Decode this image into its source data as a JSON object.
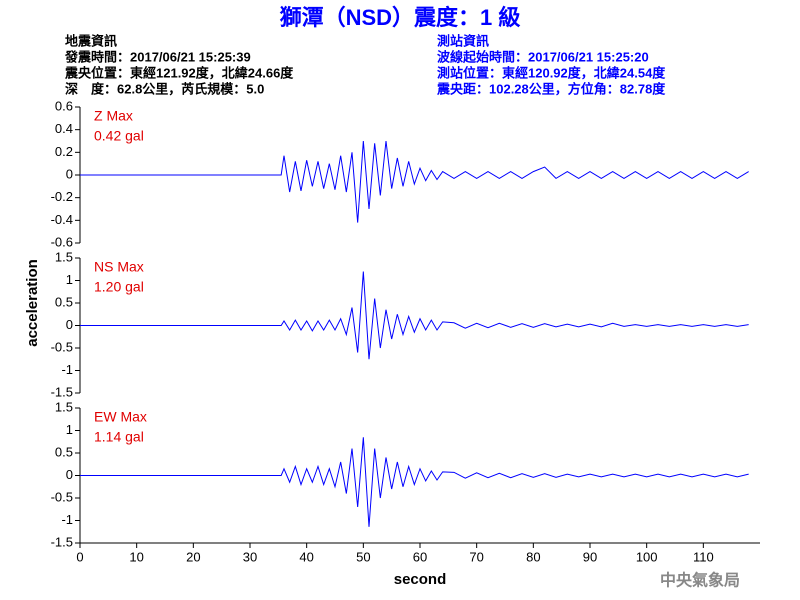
{
  "header": {
    "title": "獅潭（NSD）震度：1 級",
    "left": [
      "地震資訊",
      "發震時間：2017/06/21 15:25:39",
      "震央位置：東經121.92度，北緯24.66度",
      "深　度：62.8公里，芮氏規模：5.0"
    ],
    "right": [
      "測站資訊",
      "波線起始時間：2017/06/21 15:25:20",
      "測站位置：東經120.92度，北緯24.54度",
      "震央距：102.28公里，方位角：82.78度"
    ]
  },
  "ylabel": "acceleration",
  "footer": "中央氣象局",
  "chart_data": [
    {
      "type": "line",
      "title": "Z Max",
      "annotation": "0.42 gal",
      "color": "#0000ff",
      "xlim": [
        0,
        120
      ],
      "ylim": [
        -0.6,
        0.6
      ],
      "yticks": [
        0.6,
        0.4,
        0.2,
        0,
        -0.2,
        -0.4,
        -0.6
      ],
      "x": [
        0,
        35.5,
        36,
        37,
        38,
        39,
        40,
        41,
        42,
        43,
        44,
        45,
        46,
        47,
        48,
        49,
        50,
        51,
        52,
        53,
        54,
        55,
        56,
        57,
        58,
        59,
        60,
        61,
        62,
        63,
        64,
        66,
        68,
        70,
        72,
        74,
        76,
        78,
        80,
        82,
        84,
        86,
        88,
        90,
        92,
        94,
        96,
        98,
        100,
        102,
        104,
        106,
        108,
        110,
        112,
        114,
        116,
        118
      ],
      "values": [
        0,
        0,
        0.17,
        -0.15,
        0.12,
        -0.14,
        0.13,
        -0.1,
        0.12,
        -0.12,
        0.1,
        -0.13,
        0.17,
        -0.15,
        0.2,
        -0.42,
        0.3,
        -0.3,
        0.28,
        -0.18,
        0.3,
        -0.12,
        0.15,
        -0.1,
        0.12,
        -0.08,
        0.06,
        -0.05,
        0.04,
        -0.04,
        0.03,
        -0.03,
        0.03,
        -0.03,
        0.03,
        -0.03,
        0.03,
        -0.03,
        0.03,
        0.07,
        -0.03,
        0.03,
        -0.03,
        0.03,
        -0.03,
        0.03,
        -0.03,
        0.03,
        -0.03,
        0.03,
        -0.03,
        0.03,
        -0.03,
        0.03,
        -0.03,
        0.03,
        -0.03,
        0.03
      ]
    },
    {
      "type": "line",
      "title": "NS Max",
      "annotation": "1.20 gal",
      "color": "#0000ff",
      "xlim": [
        0,
        120
      ],
      "ylim": [
        -1.5,
        1.5
      ],
      "yticks": [
        1.5,
        1,
        0.5,
        0,
        -0.5,
        -1,
        -1.5
      ],
      "x": [
        0,
        35.5,
        36,
        37,
        38,
        39,
        40,
        41,
        42,
        43,
        44,
        45,
        46,
        47,
        48,
        49,
        50,
        51,
        52,
        53,
        54,
        55,
        56,
        57,
        58,
        59,
        60,
        61,
        62,
        63,
        64,
        66,
        68,
        70,
        72,
        74,
        76,
        78,
        80,
        82,
        84,
        86,
        88,
        90,
        92,
        94,
        96,
        98,
        100,
        102,
        104,
        106,
        108,
        110,
        112,
        114,
        116,
        118
      ],
      "values": [
        0,
        0,
        0.1,
        -0.1,
        0.12,
        -0.1,
        0.1,
        -0.12,
        0.1,
        -0.1,
        0.12,
        -0.1,
        0.15,
        -0.2,
        0.4,
        -0.6,
        1.2,
        -0.75,
        0.6,
        -0.5,
        0.35,
        -0.3,
        0.25,
        -0.2,
        0.2,
        -0.15,
        0.15,
        -0.1,
        0.12,
        -0.1,
        0.08,
        0.06,
        -0.06,
        0.05,
        -0.05,
        0.05,
        -0.04,
        0.04,
        -0.04,
        0.04,
        -0.03,
        0.03,
        -0.03,
        0.03,
        -0.03,
        0.05,
        -0.02,
        0.02,
        -0.02,
        0.02,
        -0.02,
        0.02,
        -0.02,
        0.02,
        -0.02,
        0.02,
        -0.02,
        0.02
      ]
    },
    {
      "type": "line",
      "title": "EW Max",
      "annotation": "1.14 gal",
      "color": "#0000ff",
      "xlabel": "second",
      "xlim": [
        0,
        120
      ],
      "xticks": [
        0,
        10,
        20,
        30,
        40,
        50,
        60,
        70,
        80,
        90,
        100,
        110
      ],
      "ylim": [
        -1.5,
        1.5
      ],
      "yticks": [
        1.5,
        1,
        0.5,
        0,
        -0.5,
        -1,
        -1.5
      ],
      "x": [
        0,
        35.5,
        36,
        37,
        38,
        39,
        40,
        41,
        42,
        43,
        44,
        45,
        46,
        47,
        48,
        49,
        50,
        51,
        52,
        53,
        54,
        55,
        56,
        57,
        58,
        59,
        60,
        61,
        62,
        63,
        64,
        66,
        68,
        70,
        72,
        74,
        76,
        78,
        80,
        82,
        84,
        86,
        88,
        90,
        92,
        94,
        96,
        98,
        100,
        102,
        104,
        106,
        108,
        110,
        112,
        114,
        116,
        118
      ],
      "values": [
        0,
        0,
        0.15,
        -0.15,
        0.2,
        -0.2,
        0.15,
        -0.15,
        0.2,
        -0.2,
        0.15,
        -0.25,
        0.3,
        -0.4,
        0.6,
        -0.7,
        0.85,
        -1.14,
        0.6,
        -0.5,
        0.4,
        -0.3,
        0.3,
        -0.25,
        0.2,
        -0.2,
        0.15,
        -0.12,
        0.1,
        -0.1,
        0.08,
        0.07,
        -0.06,
        0.06,
        -0.05,
        0.05,
        -0.05,
        0.04,
        -0.04,
        0.04,
        -0.04,
        0.03,
        -0.03,
        0.03,
        -0.03,
        0.03,
        -0.03,
        0.03,
        -0.03,
        0.03,
        -0.03,
        0.03,
        -0.03,
        0.03,
        -0.03,
        0.03,
        -0.03,
        0.03
      ]
    }
  ]
}
